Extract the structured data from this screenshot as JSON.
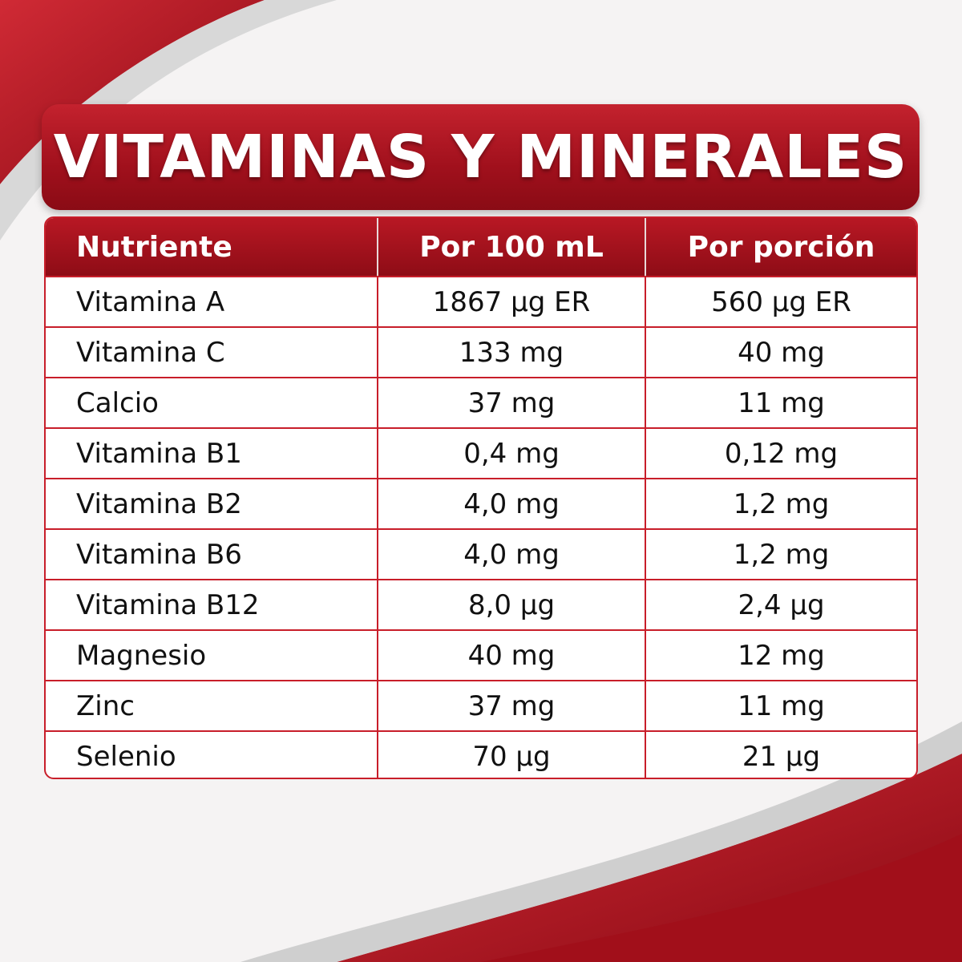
{
  "title": "VITAMINAS Y MINERALES",
  "table": {
    "headers": [
      "Nutriente",
      "Por 100 mL",
      "Por porción"
    ],
    "rows": [
      [
        "Vitamina A",
        "1867 µg ER",
        "560 µg ER"
      ],
      [
        "Vitamina C",
        "133 mg",
        "40 mg"
      ],
      [
        "Calcio",
        "37 mg",
        "11 mg"
      ],
      [
        "Vitamina B1",
        "0,4 mg",
        "0,12 mg"
      ],
      [
        "Vitamina B2",
        "4,0 mg",
        "1,2 mg"
      ],
      [
        "Vitamina B6",
        "4,0 mg",
        "1,2 mg"
      ],
      [
        "Vitamina B12",
        "8,0 µg",
        "2,4 µg"
      ],
      [
        "Magnesio",
        "40 mg",
        "12 mg"
      ],
      [
        "Zinc",
        "37 mg",
        "11 mg"
      ],
      [
        "Selenio",
        "70 µg",
        "21 µg"
      ]
    ]
  }
}
